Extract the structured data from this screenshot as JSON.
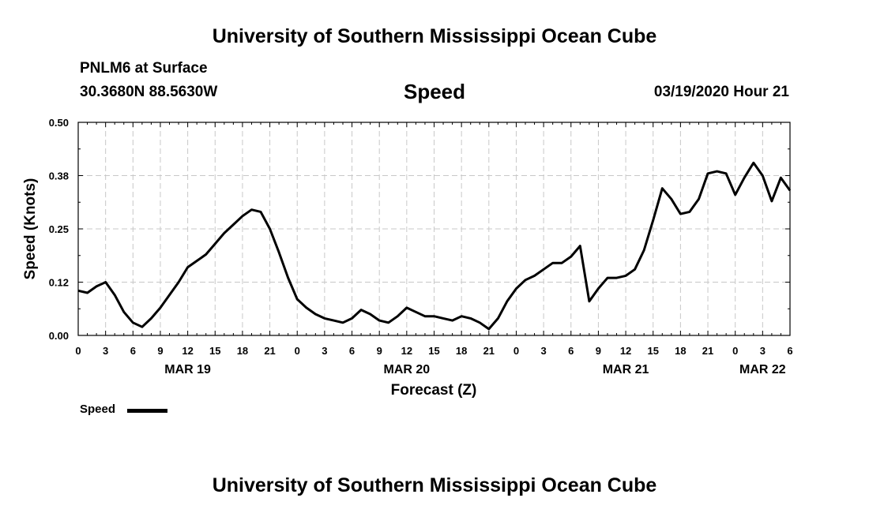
{
  "header": {
    "title": "University of Southern Mississippi Ocean Cube",
    "station": "PNLM6 at Surface",
    "coords": "30.3680N 88.5630W",
    "variable": "Speed",
    "datetime": "03/19/2020 Hour 21",
    "footer_title": "University of Southern Mississippi Ocean Cube"
  },
  "legend": {
    "label": "Speed"
  },
  "chart_data": {
    "type": "line",
    "title": "Speed",
    "xlabel": "Forecast (Z)",
    "ylabel": "Speed (Knots)",
    "ylim": [
      0,
      0.5
    ],
    "yticks": [
      0.0,
      0.125,
      0.25,
      0.375,
      0.5
    ],
    "ytick_labels": [
      "0.00",
      "0.12",
      "0.25",
      "0.38",
      "0.50"
    ],
    "xlim": [
      0,
      78
    ],
    "xticks": [
      0,
      3,
      6,
      9,
      12,
      15,
      18,
      21,
      24,
      27,
      30,
      33,
      36,
      39,
      42,
      45,
      48,
      51,
      54,
      57,
      60,
      63,
      66,
      69,
      72,
      75,
      78
    ],
    "xtick_labels": [
      "0",
      "3",
      "6",
      "9",
      "12",
      "15",
      "18",
      "21",
      "0",
      "3",
      "6",
      "9",
      "12",
      "15",
      "18",
      "21",
      "0",
      "3",
      "6",
      "9",
      "12",
      "15",
      "18",
      "21",
      "0",
      "3",
      "6"
    ],
    "date_labels": [
      {
        "x": 12,
        "label": "MAR 19"
      },
      {
        "x": 36,
        "label": "MAR 20"
      },
      {
        "x": 60,
        "label": "MAR 21"
      },
      {
        "x": 75,
        "label": "MAR 22"
      }
    ],
    "grid": true,
    "series": [
      {
        "name": "Speed",
        "x": [
          0,
          1,
          2,
          3,
          4,
          5,
          6,
          7,
          8,
          9,
          10,
          11,
          12,
          13,
          14,
          15,
          16,
          17,
          18,
          19,
          20,
          21,
          22,
          23,
          24,
          25,
          26,
          27,
          28,
          29,
          30,
          31,
          32,
          33,
          34,
          35,
          36,
          37,
          38,
          39,
          40,
          41,
          42,
          43,
          44,
          45,
          46,
          47,
          48,
          49,
          50,
          51,
          52,
          53,
          54,
          55,
          56,
          57,
          58,
          59,
          60,
          61,
          62,
          63,
          64,
          65,
          66,
          67,
          68,
          69,
          70,
          71,
          72,
          73,
          74,
          75,
          76,
          77,
          78
        ],
        "values": [
          0.105,
          0.1,
          0.115,
          0.125,
          0.095,
          0.055,
          0.03,
          0.02,
          0.04,
          0.065,
          0.095,
          0.125,
          0.16,
          0.175,
          0.19,
          0.215,
          0.24,
          0.26,
          0.28,
          0.295,
          0.29,
          0.25,
          0.195,
          0.135,
          0.085,
          0.065,
          0.05,
          0.04,
          0.035,
          0.03,
          0.04,
          0.06,
          0.05,
          0.035,
          0.03,
          0.045,
          0.065,
          0.055,
          0.045,
          0.045,
          0.04,
          0.035,
          0.045,
          0.04,
          0.03,
          0.015,
          0.04,
          0.08,
          0.11,
          0.13,
          0.14,
          0.155,
          0.17,
          0.17,
          0.185,
          0.21,
          0.08,
          0.11,
          0.135,
          0.135,
          0.14,
          0.155,
          0.2,
          0.27,
          0.345,
          0.32,
          0.285,
          0.29,
          0.32,
          0.38,
          0.385,
          0.38,
          0.33,
          0.37,
          0.405,
          0.375,
          0.315,
          0.37,
          0.34
        ]
      }
    ]
  }
}
